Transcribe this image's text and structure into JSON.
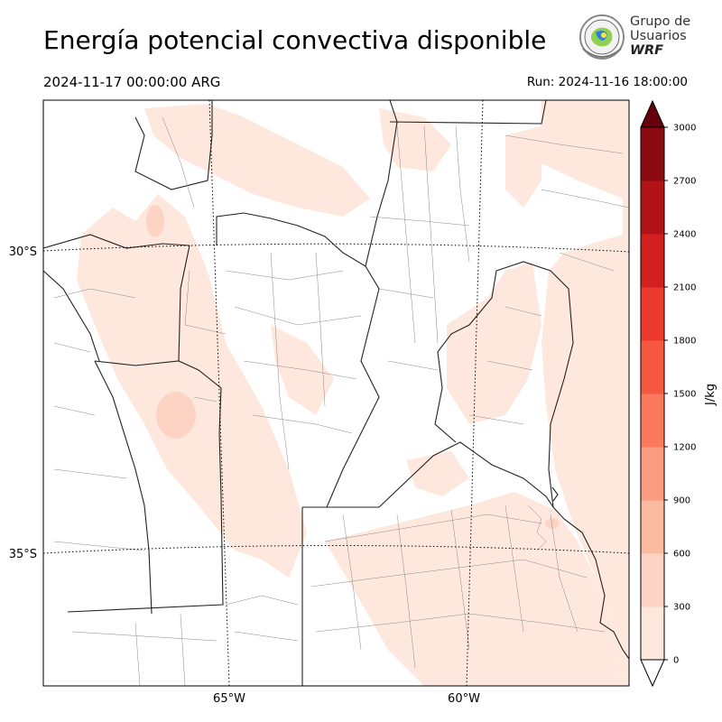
{
  "title": "Energía potencial convectiva disponible",
  "valid_time": "2024-11-17 00:00:00 ARG",
  "run_time": "Run: 2024-11-16 18:00:00",
  "logo": {
    "line1": "Grupo de",
    "line2": "Usuarios",
    "line3": "WRF"
  },
  "map": {
    "lat_labels": [
      "30°S",
      "35°S"
    ],
    "lon_labels": [
      "65°W",
      "60°W"
    ]
  },
  "colorbar": {
    "label": "J/kg",
    "ticks": [
      "0",
      "300",
      "600",
      "900",
      "1200",
      "1500",
      "1800",
      "2100",
      "2400",
      "2700",
      "3000"
    ],
    "colors": [
      "#fee8de",
      "#fdd4c3",
      "#fcbba1",
      "#fc9b80",
      "#fb7a5d",
      "#f6573f",
      "#ec3a2d",
      "#d1201e",
      "#b21317",
      "#8c0a12",
      "#67000d"
    ]
  }
}
